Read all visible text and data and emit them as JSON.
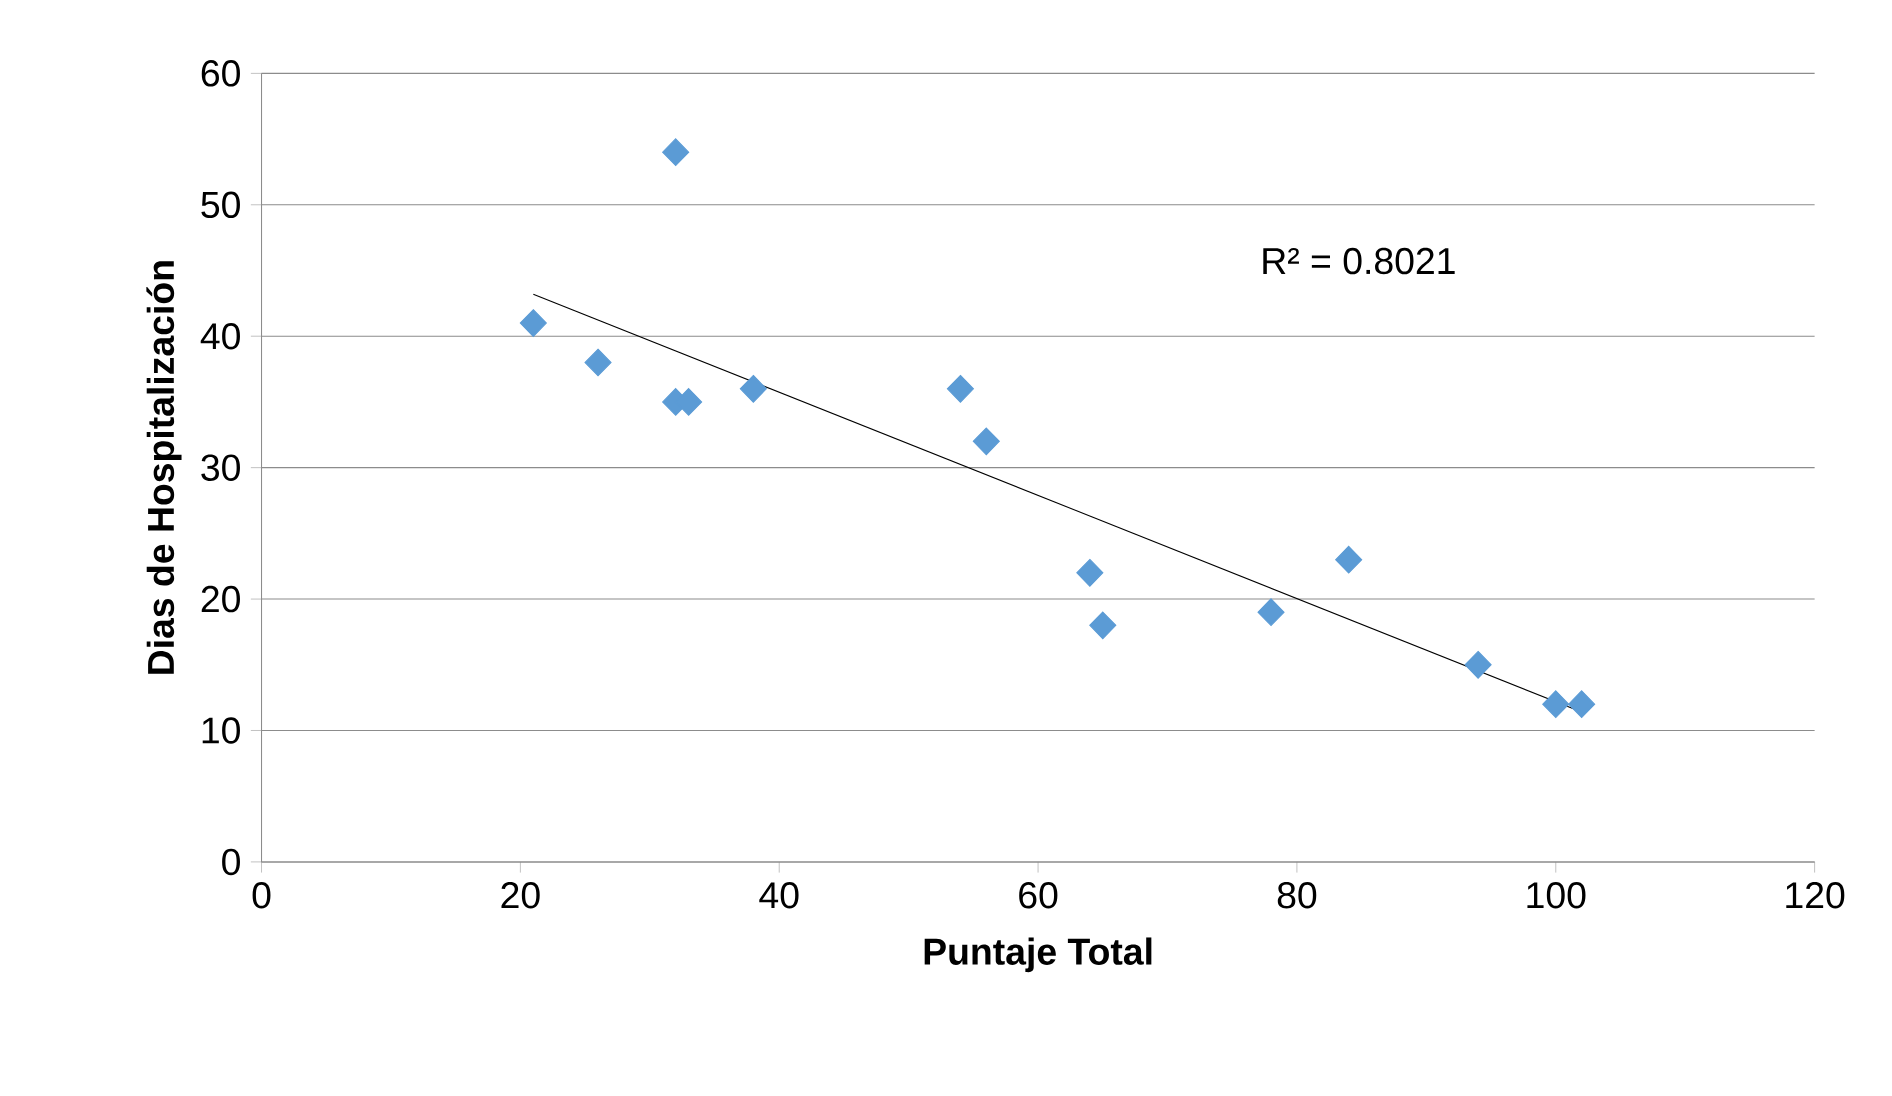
{
  "chart_data": {
    "type": "scatter",
    "xlabel": "Puntaje Total",
    "ylabel": "Dias de Hospitalización",
    "annotations": [
      "R² = 0.8021"
    ],
    "xlim": [
      0,
      120
    ],
    "xticks": [
      0,
      20,
      40,
      60,
      80,
      100,
      120
    ],
    "ylim": [
      0,
      60
    ],
    "yticks": [
      0,
      10,
      20,
      30,
      40,
      50,
      60
    ],
    "grid": "y",
    "marker": "diamond",
    "series": [
      {
        "color": "#5b9bd5",
        "x": [
          21,
          26,
          32,
          32,
          33,
          38,
          54,
          56,
          64,
          65,
          78,
          84,
          94,
          100,
          102
        ],
        "values": [
          41,
          38,
          54,
          35,
          35,
          36,
          36,
          32,
          22,
          18,
          19,
          23,
          15,
          12,
          12
        ]
      },
      {
        "type": "line",
        "color": "#000000",
        "line_style": "solid",
        "marker": "none",
        "x": [
          21,
          102
        ],
        "values": [
          43.2,
          11.4
        ]
      }
    ]
  }
}
